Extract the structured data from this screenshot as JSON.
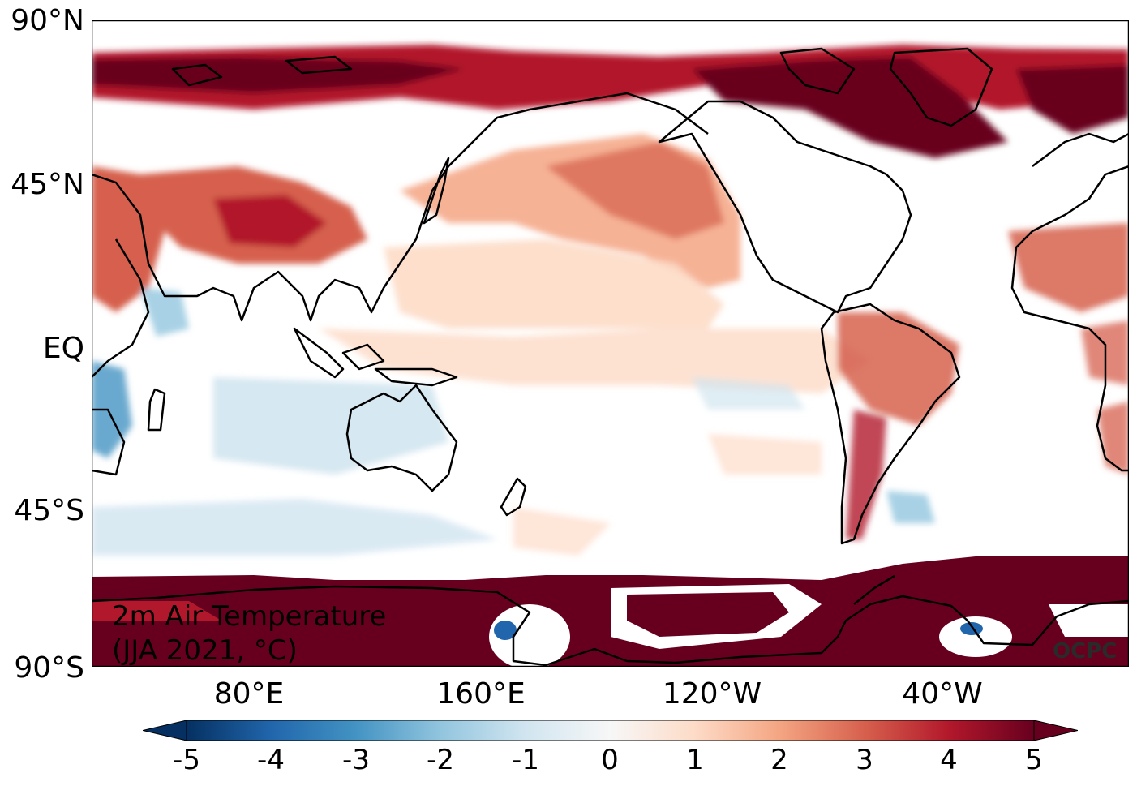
{
  "map": {
    "title_line1": "2m Air Temperature",
    "title_line2": "(JJA 2021, °C)",
    "credit": "OCPC",
    "lat_labels": [
      "90°N",
      "45°N",
      "EQ",
      "45°S",
      "90°S"
    ],
    "lon_labels": [
      "80°E",
      "160°E",
      "120°W",
      "40°W"
    ]
  },
  "colorbar": {
    "ticks": [
      "-5",
      "-4",
      "-3",
      "-2",
      "-1",
      "0",
      "1",
      "2",
      "3",
      "4",
      "5"
    ],
    "colors": [
      "#053061",
      "#2166ac",
      "#4393c3",
      "#92c5de",
      "#d1e5f0",
      "#f7f7f7",
      "#fddbc7",
      "#f4a582",
      "#d6604d",
      "#b2182b",
      "#67001f"
    ],
    "extend": "both"
  }
}
